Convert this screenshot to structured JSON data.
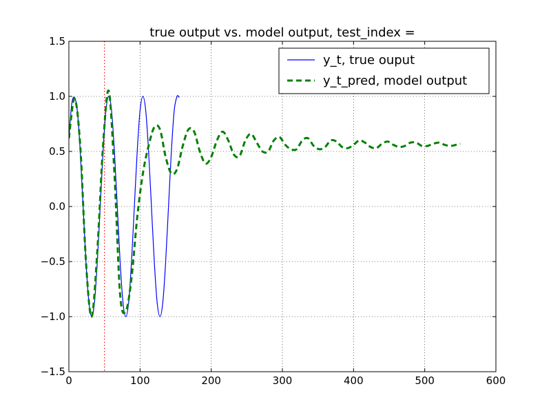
{
  "chart_data": {
    "type": "line",
    "title": "true output vs. model output, test_index =",
    "xlabel": "",
    "ylabel": "",
    "xlim": [
      0,
      600
    ],
    "ylim": [
      -1.5,
      1.5
    ],
    "x_ticks": [
      0,
      100,
      200,
      300,
      400,
      500,
      600
    ],
    "x_tick_labels": [
      "0",
      "100",
      "200",
      "300",
      "400",
      "500",
      "600"
    ],
    "y_ticks": [
      -1.5,
      -1.0,
      -0.5,
      0.0,
      0.5,
      1.0,
      1.5
    ],
    "y_tick_labels": [
      "−1.5",
      "−1.0",
      "−0.5",
      "0.0",
      "0.5",
      "1.0",
      "1.5"
    ],
    "grid": true,
    "legend_position": "upper right",
    "vline": {
      "x": 50,
      "color": "#ff0000",
      "style": "dotted"
    },
    "series": [
      {
        "name": "y_t, true ouput",
        "color": "#0000ff",
        "style": "solid",
        "x": [
          0,
          4,
          8,
          12,
          16,
          20,
          24,
          28,
          32,
          36,
          40,
          44,
          48,
          52,
          56,
          60,
          64,
          68,
          72,
          76,
          80,
          84,
          88,
          92,
          96,
          100,
          104,
          108,
          112,
          116,
          120,
          124,
          128,
          132,
          136,
          140,
          144,
          148,
          152,
          155
        ],
        "y": [
          0.62,
          0.93,
          0.99,
          0.86,
          0.5,
          0.0,
          -0.5,
          -0.86,
          -1.0,
          -0.87,
          -0.5,
          0.0,
          0.5,
          0.87,
          1.0,
          0.87,
          0.5,
          0.0,
          -0.5,
          -0.87,
          -1.0,
          -0.87,
          -0.5,
          0.0,
          0.5,
          0.87,
          1.0,
          0.87,
          0.5,
          0.0,
          -0.5,
          -0.87,
          -1.0,
          -0.87,
          -0.5,
          0.0,
          0.5,
          0.87,
          1.0,
          0.99
        ]
      },
      {
        "name": "y_t_pred, model output",
        "color": "#008000",
        "style": "dashed",
        "x": [
          0,
          8,
          16,
          24,
          32,
          40,
          48,
          56,
          64,
          72,
          80,
          88,
          96,
          104,
          112,
          120,
          128,
          136,
          144,
          152,
          160,
          168,
          176,
          184,
          192,
          200,
          208,
          216,
          224,
          232,
          240,
          248,
          256,
          264,
          272,
          280,
          288,
          296,
          304,
          312,
          320,
          328,
          336,
          344,
          352,
          360,
          368,
          376,
          384,
          392,
          400,
          408,
          416,
          424,
          432,
          440,
          448,
          456,
          464,
          472,
          480,
          488,
          496,
          504,
          512,
          520,
          528,
          536,
          544,
          550
        ],
        "y": [
          0.62,
          0.98,
          0.55,
          -0.5,
          -1.0,
          -0.4,
          0.55,
          1.05,
          0.3,
          -0.8,
          -0.95,
          -0.65,
          -0.1,
          0.3,
          0.55,
          0.72,
          0.7,
          0.45,
          0.3,
          0.34,
          0.55,
          0.7,
          0.68,
          0.5,
          0.39,
          0.45,
          0.6,
          0.68,
          0.6,
          0.47,
          0.46,
          0.6,
          0.66,
          0.58,
          0.5,
          0.5,
          0.6,
          0.63,
          0.56,
          0.52,
          0.52,
          0.6,
          0.62,
          0.55,
          0.52,
          0.54,
          0.6,
          0.59,
          0.54,
          0.53,
          0.56,
          0.6,
          0.58,
          0.54,
          0.53,
          0.57,
          0.59,
          0.56,
          0.54,
          0.55,
          0.58,
          0.58,
          0.55,
          0.55,
          0.57,
          0.58,
          0.56,
          0.55,
          0.56,
          0.57
        ]
      }
    ]
  }
}
